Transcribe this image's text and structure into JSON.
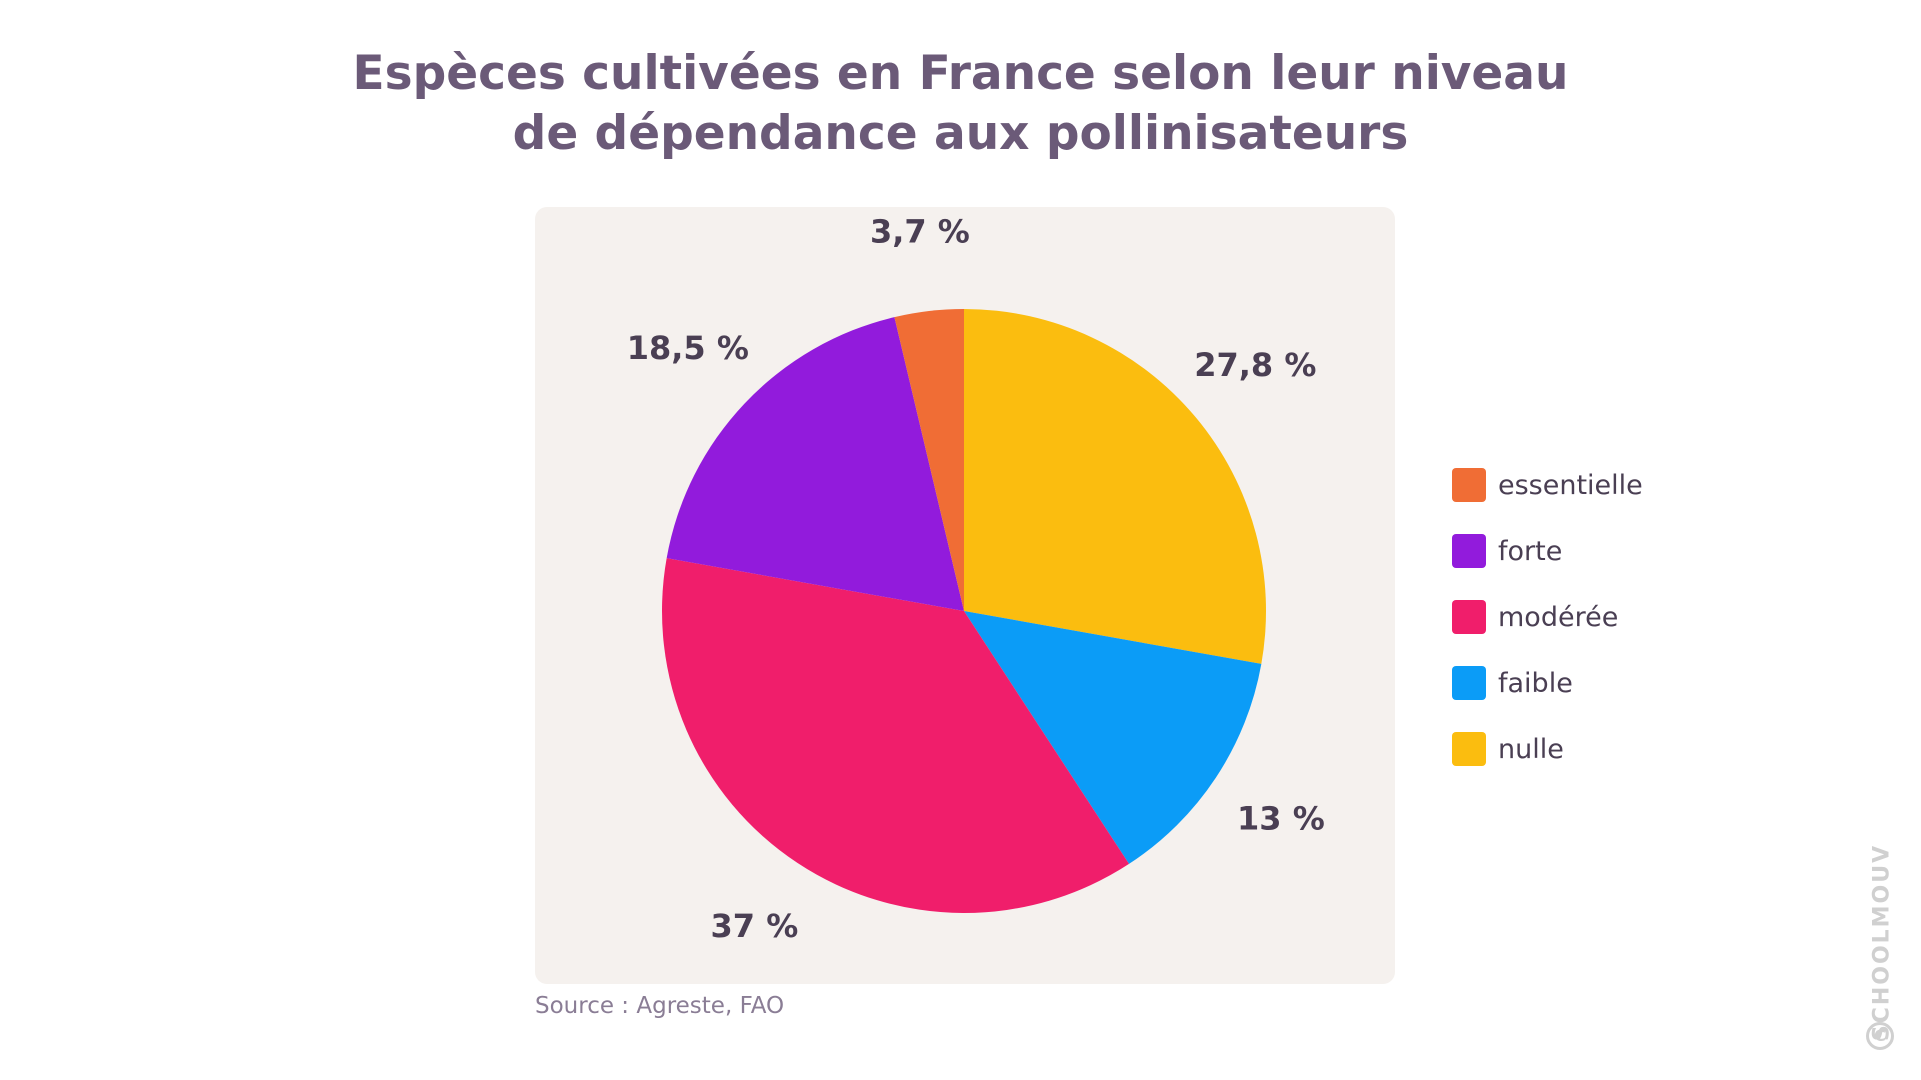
{
  "title": {
    "line1": "Espèces cultivées en France selon leur niveau",
    "line2": "de dépendance aux pollinisateurs"
  },
  "source": "Source : Agreste, FAO",
  "watermark": "SCHOOLMOUV",
  "chart_data": {
    "type": "pie",
    "title": "Espèces cultivées en France selon leur niveau de dépendance aux pollinisateurs",
    "legend_position": "right",
    "start": "top",
    "direction": "clockwise",
    "slices": [
      {
        "name": "nulle",
        "value": 27.8,
        "label": "27,8 %",
        "color": "#fbbd0f"
      },
      {
        "name": "faible",
        "value": 13,
        "label": "13 %",
        "color": "#0b9cf7"
      },
      {
        "name": "modérée",
        "value": 37,
        "label": "37 %",
        "color": "#f01e6b"
      },
      {
        "name": "forte",
        "value": 18.5,
        "label": "18,5 %",
        "color": "#921bdc"
      },
      {
        "name": "essentielle",
        "value": 3.7,
        "label": "3,7 %",
        "color": "#f06d35"
      }
    ],
    "legend": [
      {
        "name": "essentielle",
        "color": "#f06d35"
      },
      {
        "name": "forte",
        "color": "#921bdc"
      },
      {
        "name": "modérée",
        "color": "#f01e6b"
      },
      {
        "name": "faible",
        "color": "#0b9cf7"
      },
      {
        "name": "nulle",
        "color": "#fbbd0f"
      }
    ]
  }
}
